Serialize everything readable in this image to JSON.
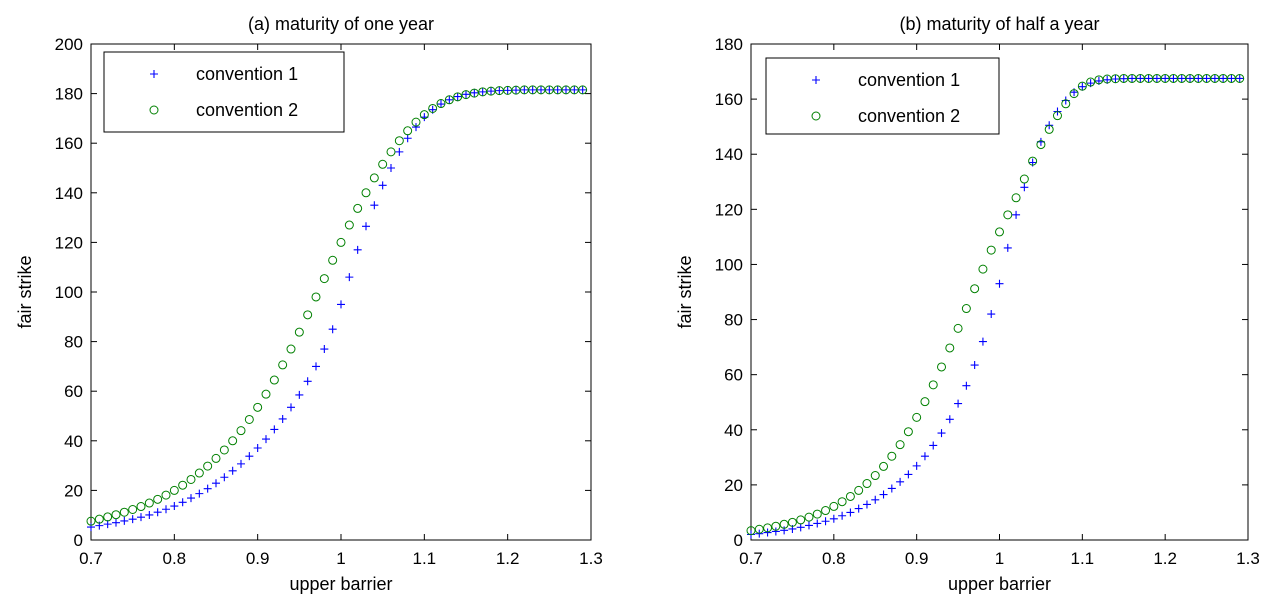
{
  "chart_data": [
    {
      "type": "scatter",
      "title": "(a) maturity of one year",
      "xlabel": "upper barrier",
      "ylabel": "fair strike",
      "xlim": [
        0.7,
        1.3
      ],
      "ylim": [
        0,
        200
      ],
      "xticks": [
        "0.7",
        "0.8",
        "0.9",
        "1",
        "1.1",
        "1.2",
        "1.3"
      ],
      "yticks": [
        "0",
        "20",
        "40",
        "60",
        "80",
        "100",
        "120",
        "140",
        "160",
        "180",
        "200"
      ],
      "grid": false,
      "legend_position": "top-left",
      "x": [
        0.7,
        0.71,
        0.72,
        0.73,
        0.74,
        0.75,
        0.76,
        0.77,
        0.78,
        0.79,
        0.8,
        0.81,
        0.82,
        0.83,
        0.84,
        0.85,
        0.86,
        0.87,
        0.88,
        0.89,
        0.9,
        0.91,
        0.92,
        0.93,
        0.94,
        0.95,
        0.96,
        0.97,
        0.98,
        0.99,
        1.0,
        1.01,
        1.02,
        1.03,
        1.04,
        1.05,
        1.06,
        1.07,
        1.08,
        1.09,
        1.1,
        1.11,
        1.12,
        1.13,
        1.14,
        1.15,
        1.16,
        1.17,
        1.18,
        1.19,
        1.2,
        1.21,
        1.22,
        1.23,
        1.24,
        1.25,
        1.26,
        1.27,
        1.28,
        1.29
      ],
      "series": [
        {
          "name": "convention 1",
          "marker": "+",
          "color": "#0000ff",
          "values": [
            5.2,
            5.8,
            6.4,
            7.0,
            7.7,
            8.4,
            9.2,
            10.1,
            11.2,
            12.4,
            13.7,
            15.2,
            16.9,
            18.7,
            20.7,
            22.9,
            25.3,
            27.9,
            30.7,
            33.8,
            37.1,
            40.7,
            44.6,
            48.8,
            53.5,
            58.5,
            64.0,
            70.0,
            77.0,
            85.0,
            95.0,
            106.0,
            117.0,
            126.5,
            135.0,
            143.0,
            150.0,
            156.5,
            162.0,
            166.5,
            170.5,
            173.5,
            175.8,
            177.5,
            178.8,
            179.7,
            180.3,
            180.7,
            181.0,
            181.2,
            181.3,
            181.4,
            181.5,
            181.5,
            181.5,
            181.5,
            181.5,
            181.5,
            181.5,
            181.5
          ]
        },
        {
          "name": "convention 2",
          "marker": "o",
          "color": "#008000",
          "values": [
            7.6,
            8.4,
            9.3,
            10.2,
            11.2,
            12.3,
            13.5,
            14.9,
            16.4,
            18.1,
            20.0,
            22.1,
            24.4,
            27.0,
            29.8,
            32.9,
            36.3,
            40.0,
            44.1,
            48.6,
            53.5,
            58.8,
            64.5,
            70.6,
            77.0,
            83.8,
            90.8,
            98.0,
            105.4,
            112.8,
            120.0,
            127.0,
            133.7,
            140.0,
            146.0,
            151.5,
            156.5,
            161.0,
            165.0,
            168.5,
            171.5,
            174.0,
            176.0,
            177.5,
            178.7,
            179.6,
            180.2,
            180.7,
            181.0,
            181.2,
            181.3,
            181.4,
            181.5,
            181.5,
            181.5,
            181.5,
            181.5,
            181.5,
            181.5,
            181.5
          ]
        }
      ]
    },
    {
      "type": "scatter",
      "title": "(b) maturity of half a year",
      "xlabel": "upper barrier",
      "ylabel": "fair strike",
      "xlim": [
        0.7,
        1.3
      ],
      "ylim": [
        0,
        180
      ],
      "xticks": [
        "0.7",
        "0.8",
        "0.9",
        "1",
        "1.1",
        "1.2",
        "1.3"
      ],
      "yticks": [
        "0",
        "20",
        "40",
        "60",
        "80",
        "100",
        "120",
        "140",
        "160",
        "180"
      ],
      "grid": false,
      "legend_position": "top-left",
      "x": [
        0.7,
        0.71,
        0.72,
        0.73,
        0.74,
        0.75,
        0.76,
        0.77,
        0.78,
        0.79,
        0.8,
        0.81,
        0.82,
        0.83,
        0.84,
        0.85,
        0.86,
        0.87,
        0.88,
        0.89,
        0.9,
        0.91,
        0.92,
        0.93,
        0.94,
        0.95,
        0.96,
        0.97,
        0.98,
        0.99,
        1.0,
        1.01,
        1.02,
        1.03,
        1.04,
        1.05,
        1.06,
        1.07,
        1.08,
        1.09,
        1.1,
        1.11,
        1.12,
        1.13,
        1.14,
        1.15,
        1.16,
        1.17,
        1.18,
        1.19,
        1.2,
        1.21,
        1.22,
        1.23,
        1.24,
        1.25,
        1.26,
        1.27,
        1.28,
        1.29
      ],
      "series": [
        {
          "name": "convention 1",
          "marker": "+",
          "color": "#0000ff",
          "values": [
            2.0,
            2.3,
            2.7,
            3.1,
            3.5,
            4.0,
            4.6,
            5.3,
            6.0,
            6.8,
            7.7,
            8.8,
            10.0,
            11.4,
            12.9,
            14.6,
            16.5,
            18.7,
            21.1,
            23.8,
            26.9,
            30.4,
            34.3,
            38.8,
            43.8,
            49.5,
            56.0,
            63.5,
            72.0,
            82.0,
            93.0,
            106.0,
            118.0,
            128.0,
            137.0,
            144.5,
            150.5,
            155.5,
            159.5,
            162.5,
            164.5,
            165.8,
            166.6,
            167.0,
            167.3,
            167.4,
            167.5,
            167.5,
            167.5,
            167.5,
            167.5,
            167.5,
            167.5,
            167.5,
            167.5,
            167.5,
            167.5,
            167.5,
            167.5,
            167.5
          ]
        },
        {
          "name": "convention 2",
          "marker": "o",
          "color": "#008000",
          "values": [
            3.4,
            3.9,
            4.4,
            5.0,
            5.7,
            6.4,
            7.3,
            8.3,
            9.4,
            10.7,
            12.2,
            13.9,
            15.8,
            18.0,
            20.5,
            23.4,
            26.7,
            30.4,
            34.6,
            39.3,
            44.5,
            50.2,
            56.3,
            62.8,
            69.7,
            76.8,
            84.0,
            91.2,
            98.3,
            105.2,
            111.8,
            118.0,
            124.2,
            131.0,
            137.5,
            143.5,
            149.0,
            154.0,
            158.3,
            162.0,
            164.7,
            166.2,
            167.0,
            167.3,
            167.4,
            167.5,
            167.5,
            167.5,
            167.5,
            167.5,
            167.5,
            167.5,
            167.5,
            167.5,
            167.5,
            167.5,
            167.5,
            167.5,
            167.5,
            167.5
          ]
        }
      ]
    }
  ]
}
